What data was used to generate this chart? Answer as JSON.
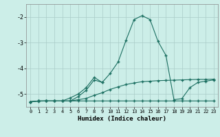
{
  "xlabel": "Humidex (Indice chaleur)",
  "background_color": "#cceee8",
  "grid_color": "#aaccc8",
  "line_color": "#1a6e60",
  "xlim": [
    -0.5,
    23.5
  ],
  "ylim": [
    -5.5,
    -1.5
  ],
  "yticks": [
    -5,
    -4,
    -3,
    -2
  ],
  "xticks": [
    0,
    1,
    2,
    3,
    4,
    5,
    6,
    7,
    8,
    9,
    10,
    11,
    12,
    13,
    14,
    15,
    16,
    17,
    18,
    19,
    20,
    21,
    22,
    23
  ],
  "series1_x": [
    0,
    1,
    2,
    3,
    4,
    5,
    6,
    7,
    8,
    9,
    10,
    11,
    12,
    13,
    14,
    15,
    16,
    17,
    18,
    19,
    20,
    21,
    22,
    23
  ],
  "series1_y": [
    -5.3,
    -5.28,
    -5.27,
    -5.27,
    -5.27,
    -5.27,
    -5.27,
    -5.27,
    -5.27,
    -5.27,
    -5.27,
    -5.27,
    -5.27,
    -5.27,
    -5.27,
    -5.27,
    -5.27,
    -5.27,
    -5.27,
    -5.27,
    -5.27,
    -5.27,
    -5.27,
    -5.27
  ],
  "series2_x": [
    0,
    1,
    2,
    3,
    4,
    5,
    6,
    7,
    8,
    9,
    10,
    11,
    12,
    13,
    14,
    15,
    16,
    17,
    18,
    19,
    20,
    21,
    22,
    23
  ],
  "series2_y": [
    -5.3,
    -5.27,
    -5.27,
    -5.27,
    -5.27,
    -5.27,
    -5.22,
    -5.17,
    -5.05,
    -4.95,
    -4.82,
    -4.72,
    -4.63,
    -4.57,
    -4.52,
    -4.5,
    -4.48,
    -4.47,
    -4.46,
    -4.45,
    -4.44,
    -4.43,
    -4.43,
    -4.42
  ],
  "series3_x": [
    0,
    1,
    2,
    3,
    4,
    5,
    6,
    7,
    8,
    9,
    10,
    11,
    12,
    13,
    14,
    15,
    16,
    17,
    18,
    19,
    20,
    21,
    22,
    23
  ],
  "series3_y": [
    -5.3,
    -5.27,
    -5.27,
    -5.27,
    -5.27,
    -5.15,
    -5.0,
    -4.75,
    -4.35,
    -4.55,
    -4.2,
    -3.75,
    -2.9,
    -2.1,
    -1.95,
    -2.1,
    -2.95,
    -3.5,
    -5.22,
    -5.18,
    -4.75,
    -4.55,
    -4.5,
    -4.45
  ],
  "series4_x": [
    0,
    1,
    2,
    3,
    4,
    5,
    6,
    7,
    8,
    9
  ],
  "series4_y": [
    -5.3,
    -5.27,
    -5.27,
    -5.27,
    -5.27,
    -5.27,
    -5.1,
    -4.85,
    -4.45,
    -4.55
  ]
}
